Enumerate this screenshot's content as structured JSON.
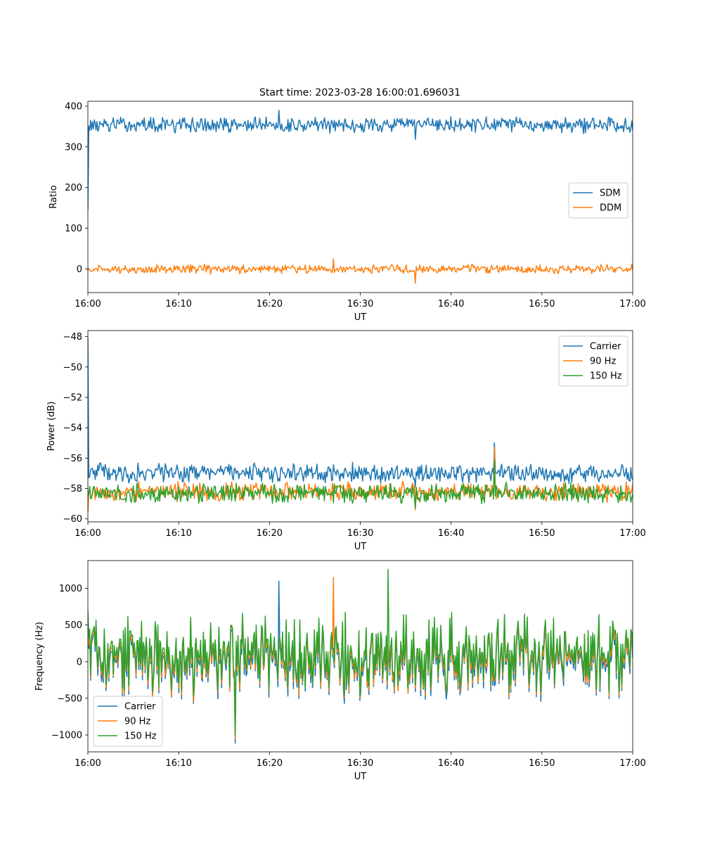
{
  "figure": {
    "title": "Start time: 2023-03-28 16:00:01.696031"
  },
  "chart_data": [
    {
      "type": "line",
      "title": "Start time: 2023-03-28 16:00:01.696031",
      "xlabel": "UT",
      "ylabel": "Ratio",
      "xlim": [
        "16:00",
        "17:00"
      ],
      "ylim": [
        -58,
        412
      ],
      "x_ticks": [
        "16:00",
        "16:10",
        "16:20",
        "16:30",
        "16:40",
        "16:50",
        "17:00"
      ],
      "y_ticks": [
        0,
        100,
        200,
        300,
        400
      ],
      "legend_position": "center-right",
      "series": [
        {
          "name": "SDM",
          "color": "#1f77b4",
          "baseline": 354,
          "noise": 14,
          "start": 145,
          "spike_max": 390,
          "spike_min": 318
        },
        {
          "name": "DDM",
          "color": "#ff7f0e",
          "baseline": 0,
          "noise": 8,
          "start": -5,
          "spike_max": 25,
          "spike_min": -35
        }
      ]
    },
    {
      "type": "line",
      "xlabel": "UT",
      "ylabel": "Power (dB)",
      "xlim": [
        "16:00",
        "17:00"
      ],
      "ylim": [
        -60.2,
        -47.6
      ],
      "x_ticks": [
        "16:00",
        "16:10",
        "16:20",
        "16:30",
        "16:40",
        "16:50",
        "17:00"
      ],
      "y_ticks": [
        -60,
        -58,
        -56,
        -54,
        -52,
        -50,
        -48
      ],
      "legend_position": "top-right",
      "series": [
        {
          "name": "Carrier",
          "color": "#1f77b4",
          "baseline": -57.0,
          "noise": 0.45,
          "start": -48.1,
          "spike_max": -55.0,
          "spike_min": -57.9
        },
        {
          "name": "90 Hz",
          "color": "#ff7f0e",
          "baseline": -58.2,
          "noise": 0.45,
          "start": -59.6,
          "spike_max": -55.3,
          "spike_min": -59.4
        },
        {
          "name": "150 Hz",
          "color": "#2ca02c",
          "baseline": -58.3,
          "noise": 0.45,
          "start": -58.5,
          "spike_max": -56.2,
          "spike_min": -59.3
        }
      ]
    },
    {
      "type": "line",
      "xlabel": "UT",
      "ylabel": "Frequency (Hz)",
      "xlim": [
        "16:00",
        "17:00"
      ],
      "ylim": [
        -1230,
        1380
      ],
      "x_ticks": [
        "16:00",
        "16:10",
        "16:20",
        "16:30",
        "16:40",
        "16:50",
        "17:00"
      ],
      "y_ticks": [
        -1000,
        -500,
        0,
        500,
        1000
      ],
      "legend_position": "bottom-left",
      "series": [
        {
          "name": "Carrier",
          "color": "#1f77b4",
          "baseline": 0,
          "noise": 380,
          "start": 300,
          "spike_max": 1100,
          "spike_min": -1110
        },
        {
          "name": "90 Hz",
          "color": "#ff7f0e",
          "baseline": 50,
          "noise": 380,
          "start": 550,
          "spike_max": 1150,
          "spike_min": -1050
        },
        {
          "name": "150 Hz",
          "color": "#2ca02c",
          "baseline": 100,
          "noise": 380,
          "start": 700,
          "spike_max": 1260,
          "spike_min": -1000
        }
      ]
    }
  ]
}
